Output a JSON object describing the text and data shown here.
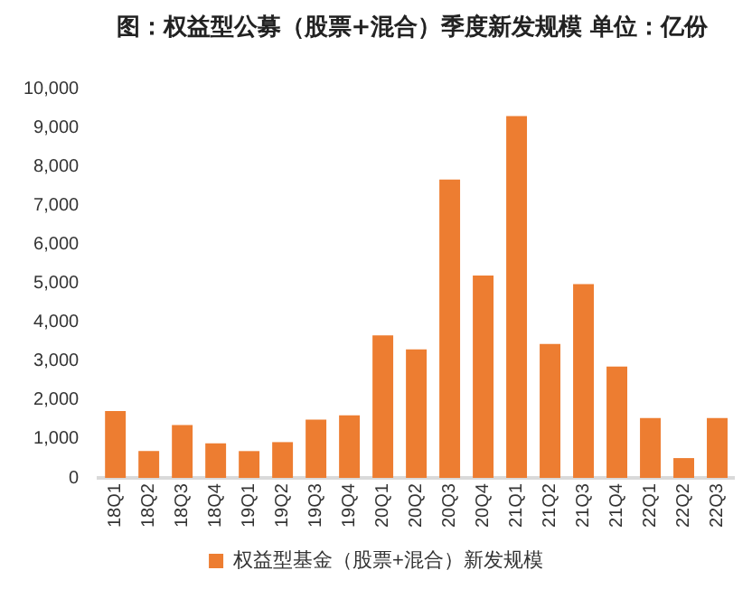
{
  "chart_data": {
    "type": "bar",
    "title": "图：权益型公募（股票+混合）季度新发规模   单位：亿份",
    "categories": [
      "18Q1",
      "18Q2",
      "18Q3",
      "18Q4",
      "19Q1",
      "19Q2",
      "19Q3",
      "19Q4",
      "20Q1",
      "20Q2",
      "20Q3",
      "20Q4",
      "21Q1",
      "21Q2",
      "21Q3",
      "21Q4",
      "22Q1",
      "22Q2",
      "22Q3"
    ],
    "series": [
      {
        "name": "权益型基金（股票+混合）新发规模",
        "color": "#ed7d31",
        "values": [
          1720,
          690,
          1360,
          890,
          690,
          920,
          1500,
          1610,
          3660,
          3300,
          7660,
          5200,
          9290,
          3440,
          4980,
          2860,
          1540,
          510,
          1540
        ]
      }
    ],
    "ylim": [
      0,
      10000
    ],
    "yticks": [
      {
        "value": 0,
        "label": "0"
      },
      {
        "value": 1000,
        "label": "1,000"
      },
      {
        "value": 2000,
        "label": "2,000"
      },
      {
        "value": 3000,
        "label": "3,000"
      },
      {
        "value": 4000,
        "label": "4,000"
      },
      {
        "value": 5000,
        "label": "5,000"
      },
      {
        "value": 6000,
        "label": "6,000"
      },
      {
        "value": 7000,
        "label": "7,000"
      },
      {
        "value": 8000,
        "label": "8,000"
      },
      {
        "value": 9000,
        "label": "9,000"
      },
      {
        "value": 10000,
        "label": "10,000"
      }
    ],
    "grid": false,
    "legend": "bottom"
  }
}
